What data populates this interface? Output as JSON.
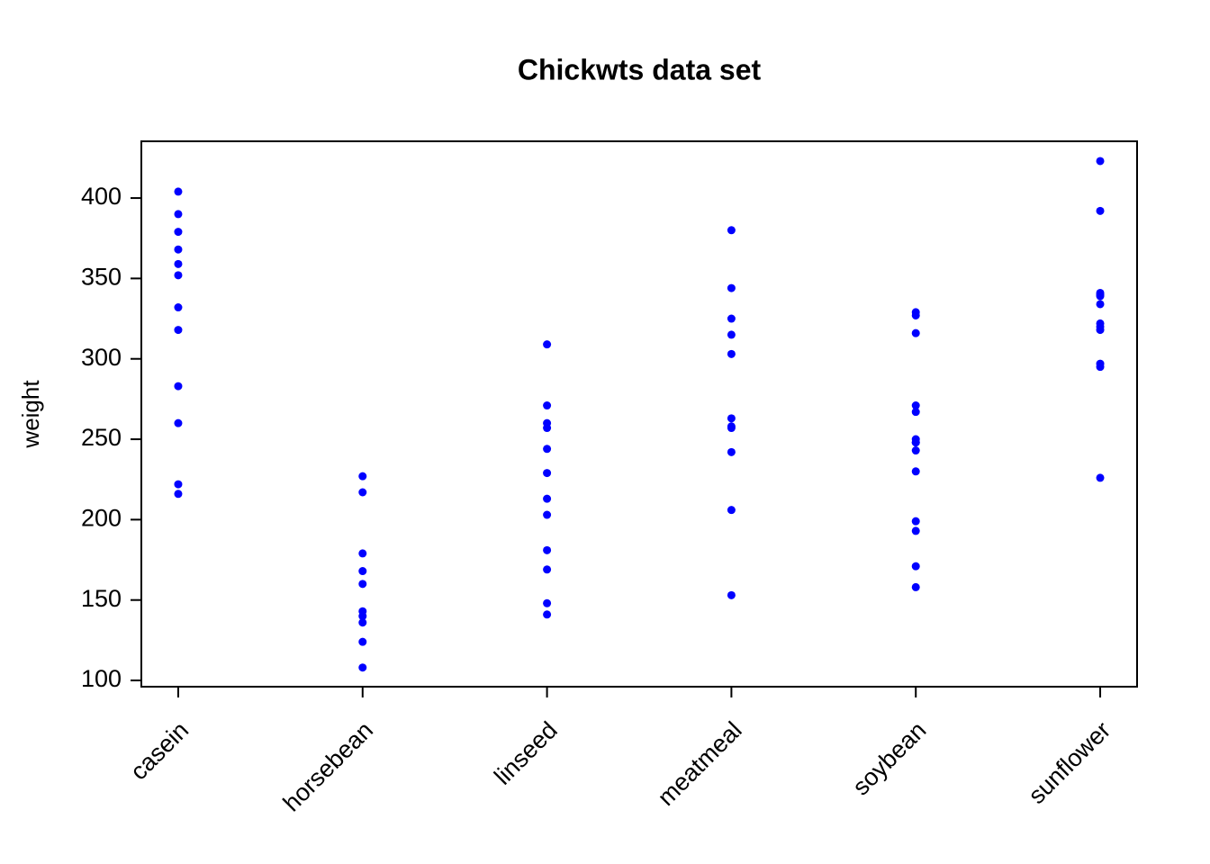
{
  "chart_data": {
    "type": "strip",
    "title": "Chickwts data set",
    "y_label": "weight",
    "color": "#0000ff",
    "categories": [
      "casein",
      "horsebean",
      "linseed",
      "meatmeal",
      "soybean",
      "sunflower"
    ],
    "values": [
      [
        368,
        390,
        379,
        260,
        404,
        318,
        352,
        359,
        216,
        222,
        283,
        332
      ],
      [
        179,
        160,
        136,
        227,
        217,
        168,
        108,
        124,
        143,
        140
      ],
      [
        309,
        229,
        181,
        141,
        260,
        203,
        148,
        169,
        213,
        257,
        244,
        271
      ],
      [
        325,
        257,
        303,
        315,
        380,
        153,
        263,
        242,
        206,
        344,
        258
      ],
      [
        243,
        230,
        248,
        327,
        329,
        250,
        193,
        271,
        316,
        267,
        199,
        171,
        158,
        248
      ],
      [
        423,
        340,
        392,
        339,
        341,
        226,
        320,
        295,
        334,
        322,
        297,
        318
      ]
    ],
    "ylim": [
      96.1,
      435.3
    ],
    "yticks": [
      100,
      150,
      200,
      250,
      300,
      350,
      400
    ]
  }
}
